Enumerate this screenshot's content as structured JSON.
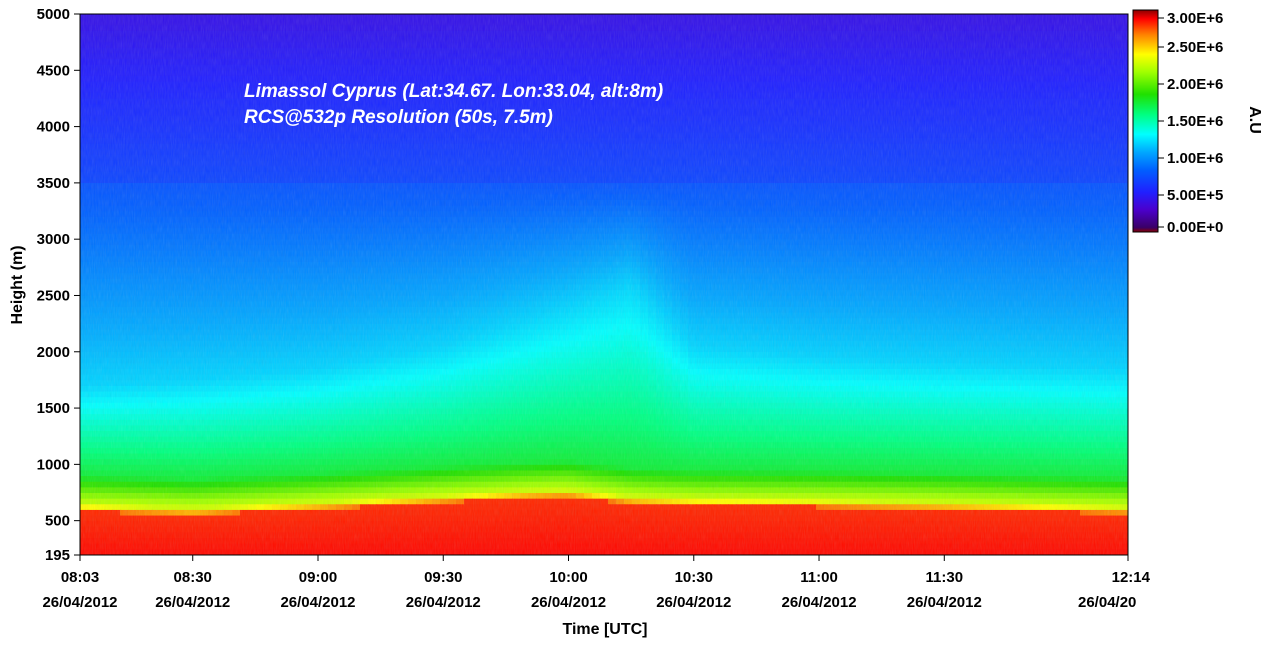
{
  "chart_data": {
    "type": "heatmap",
    "annotations": [
      "Limassol Cyprus (Lat:34.67. Lon:33.04, alt:8m)",
      "RCS@532p Resolution (50s, 7.5m)"
    ],
    "xlabel": "Time [UTC]",
    "ylabel": "Height (m)",
    "ylim": [
      195,
      5000
    ],
    "y_ticks": [
      195,
      500,
      1000,
      1500,
      2000,
      2500,
      3000,
      3500,
      4000,
      4500,
      5000
    ],
    "x_range_minutes": [
      483,
      734
    ],
    "x_ticks": [
      {
        "time": "08:03",
        "date": "26/04/2012",
        "minute": 483
      },
      {
        "time": "08:30",
        "date": "26/04/2012",
        "minute": 510
      },
      {
        "time": "09:00",
        "date": "26/04/2012",
        "minute": 540
      },
      {
        "time": "09:30",
        "date": "26/04/2012",
        "minute": 570
      },
      {
        "time": "10:00",
        "date": "26/04/2012",
        "minute": 600
      },
      {
        "time": "10:30",
        "date": "26/04/2012",
        "minute": 630
      },
      {
        "time": "11:00",
        "date": "26/04/2012",
        "minute": 660
      },
      {
        "time": "11:30",
        "date": "26/04/2012",
        "minute": 690
      },
      {
        "time": "12:14",
        "date": "26/04/20",
        "minute": 734
      }
    ],
    "colorbar": {
      "label": "A.U",
      "range": [
        0,
        3000000
      ],
      "ticks": [
        "3.00E+6",
        "2.50E+6",
        "2.00E+6",
        "1.50E+6",
        "1.00E+6",
        "5.00E+5",
        "0.00E+0"
      ],
      "tick_values": [
        3000000,
        2500000,
        2000000,
        1500000,
        1000000,
        500000,
        0
      ],
      "colormap": [
        "#3a0066",
        "#4b00cc",
        "#2020ff",
        "#0060ff",
        "#00a8ff",
        "#00ffff",
        "#00ff80",
        "#20e000",
        "#a0ff00",
        "#ffff00",
        "#ff8000",
        "#ff0000",
        "#8b0000"
      ]
    },
    "boundary_layer_top": {
      "minutes": [
        483,
        510,
        540,
        570,
        590,
        600,
        615,
        630,
        660,
        690,
        734
      ],
      "height": [
        640,
        610,
        660,
        720,
        760,
        770,
        710,
        690,
        680,
        660,
        620
      ]
    },
    "aerosol_layer_top": {
      "minutes": [
        483,
        510,
        540,
        570,
        600,
        615,
        630,
        660,
        690,
        734
      ],
      "height": [
        1700,
        1750,
        1850,
        2050,
        2400,
        2600,
        2050,
        1950,
        1900,
        1850
      ]
    }
  }
}
